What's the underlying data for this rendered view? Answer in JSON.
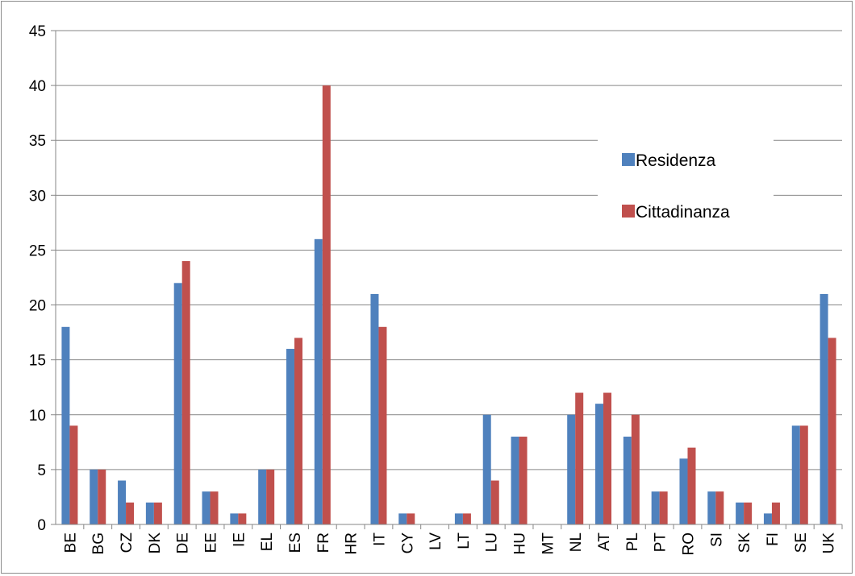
{
  "chart_data": {
    "type": "bar",
    "title": "",
    "xlabel": "",
    "ylabel": "",
    "ylim": [
      0,
      45
    ],
    "yticks": [
      0,
      5,
      10,
      15,
      20,
      25,
      30,
      35,
      40,
      45
    ],
    "grid": true,
    "legend_position": "right",
    "categories": [
      "BE",
      "BG",
      "CZ",
      "DK",
      "DE",
      "EE",
      "IE",
      "EL",
      "ES",
      "FR",
      "HR",
      "IT",
      "CY",
      "LV",
      "LT",
      "LU",
      "HU",
      "MT",
      "NL",
      "AT",
      "PL",
      "PT",
      "RO",
      "SI",
      "SK",
      "FI",
      "SE",
      "UK"
    ],
    "series": [
      {
        "name": "Residenza",
        "color": "#4f81bd",
        "values": [
          18,
          5,
          4,
          2,
          22,
          3,
          1,
          5,
          16,
          26,
          0,
          21,
          1,
          0,
          1,
          10,
          8,
          0,
          10,
          11,
          8,
          3,
          6,
          3,
          2,
          1,
          9,
          21
        ]
      },
      {
        "name": "Cittadinanza",
        "color": "#c0504d",
        "values": [
          9,
          5,
          2,
          2,
          24,
          3,
          1,
          5,
          17,
          40,
          0,
          18,
          1,
          0,
          1,
          4,
          8,
          0,
          12,
          12,
          10,
          3,
          7,
          3,
          2,
          2,
          9,
          17
        ]
      }
    ]
  }
}
